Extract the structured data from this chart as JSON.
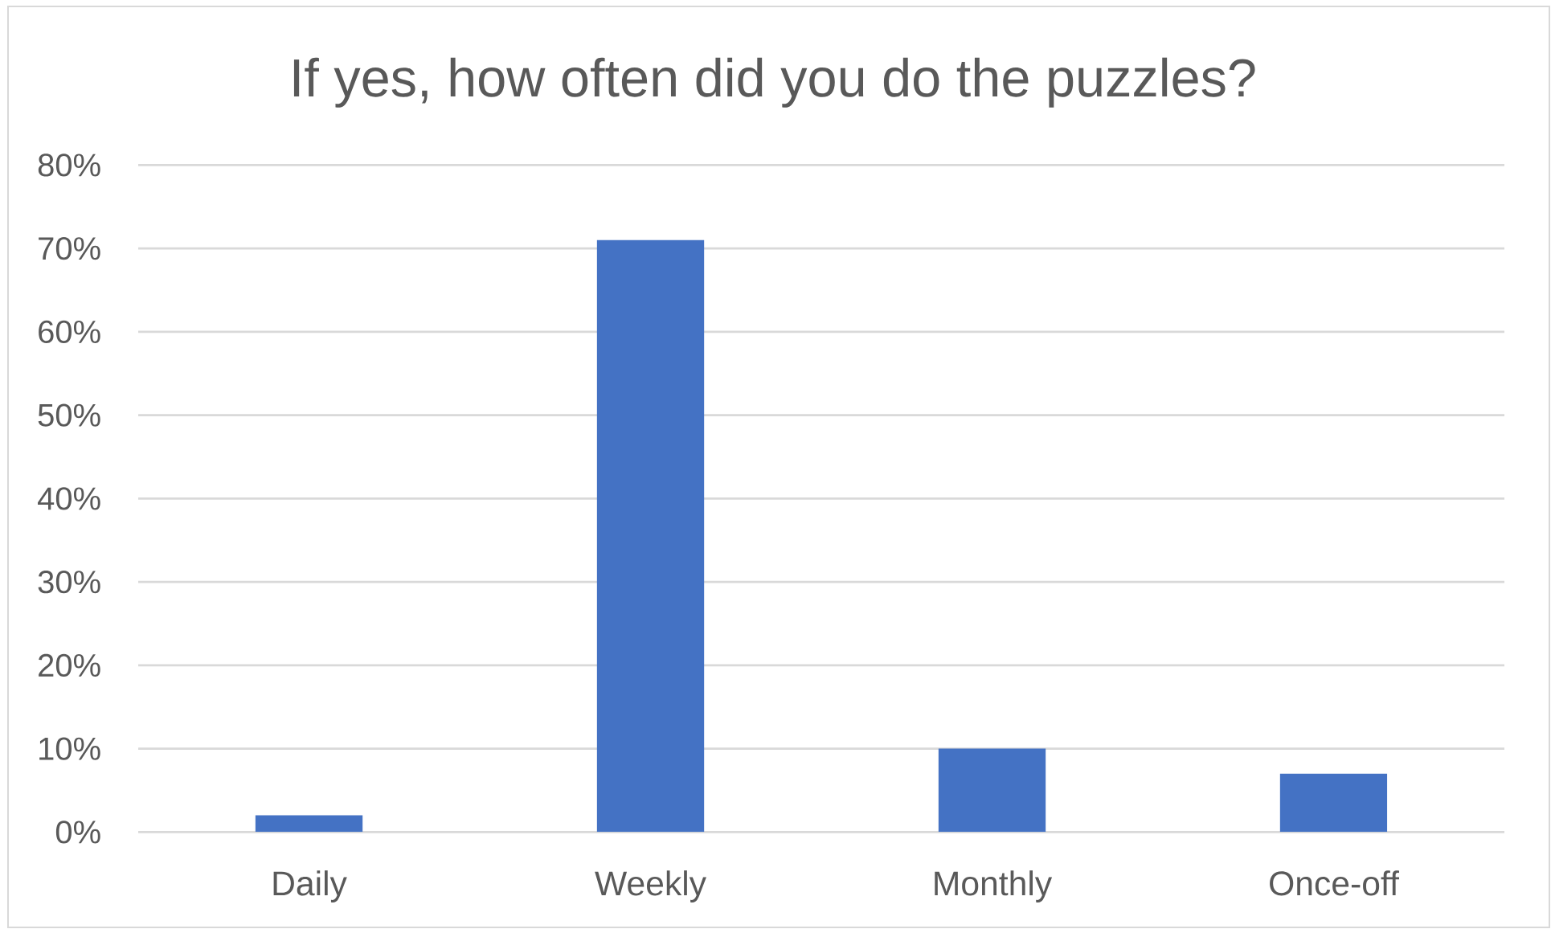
{
  "chart_data": {
    "type": "bar",
    "title": "If yes, how often did you do the puzzles?",
    "categories": [
      "Daily",
      "Weekly",
      "Monthly",
      "Once-off"
    ],
    "values": [
      2,
      71,
      10,
      7
    ],
    "color": "#4472c4",
    "ylim": [
      0,
      80
    ],
    "yticks": [
      {
        "value": 0,
        "label": "0%"
      },
      {
        "value": 10,
        "label": "10%"
      },
      {
        "value": 20,
        "label": "20%"
      },
      {
        "value": 30,
        "label": "30%"
      },
      {
        "value": 40,
        "label": "40%"
      },
      {
        "value": 50,
        "label": "50%"
      },
      {
        "value": 60,
        "label": "60%"
      },
      {
        "value": 70,
        "label": "70%"
      },
      {
        "value": 80,
        "label": "80%"
      }
    ],
    "grid": "y"
  }
}
